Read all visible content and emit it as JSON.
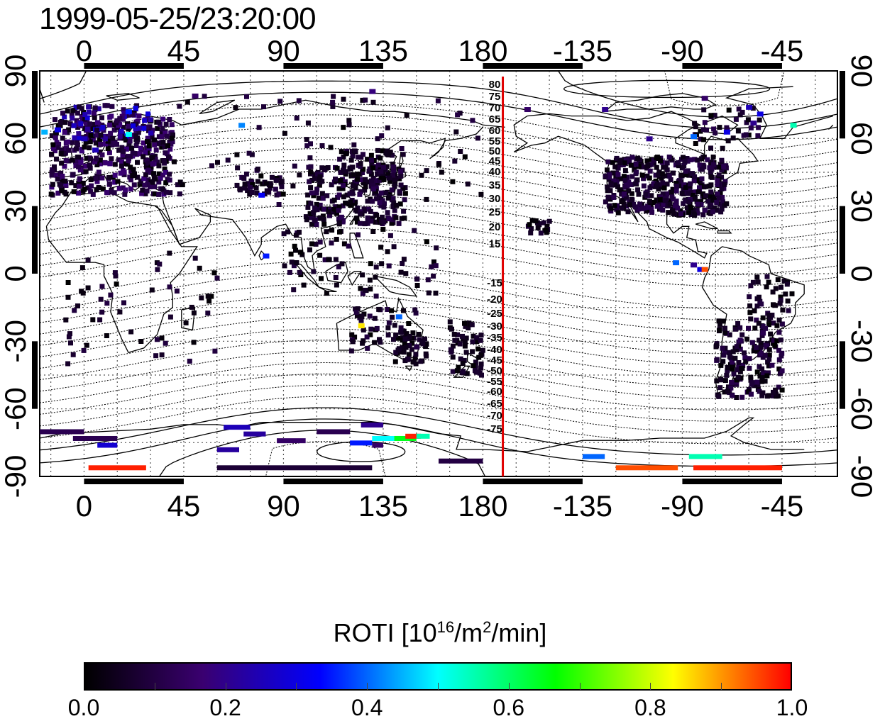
{
  "map": {
    "title": "1999-05-25/23:20:00",
    "lon_ticks_top": [
      "0",
      "45",
      "90",
      "135",
      "180",
      "-135",
      "-90",
      "-45"
    ],
    "lon_ticks_bottom": [
      "0",
      "45",
      "90",
      "135",
      "180",
      "-135",
      "-90",
      "-45"
    ],
    "lat_ticks_left": [
      "90",
      "60",
      "30",
      "0",
      "-30",
      "-60",
      "-90"
    ],
    "lat_ticks_right": [
      "90",
      "60",
      "30",
      "0",
      "-30",
      "-60",
      "-90"
    ],
    "mlat_labels_north": [
      "80",
      "75",
      "70",
      "65",
      "60",
      "55",
      "50",
      "45",
      "40",
      "35",
      "30",
      "25",
      "20",
      "15"
    ],
    "mlat_labels_south": [
      "-15",
      "-20",
      "-25",
      "-30",
      "-35",
      "-40",
      "-45",
      "-50",
      "-55",
      "-60",
      "-65",
      "-70",
      "-75"
    ],
    "terminator_line_lon": -171,
    "terminator_color": "#e00000"
  },
  "colorbar": {
    "title_main": "ROTI  [10",
    "title_exp1": "16",
    "title_mid": "/m",
    "title_exp2": "2",
    "title_end": "/min]",
    "ticks": [
      "0.0",
      "0.2",
      "0.4",
      "0.6",
      "0.8",
      "1.0"
    ],
    "range": [
      0.0,
      1.0
    ],
    "colors": [
      "#000000",
      "#3a0070",
      "#0000ff",
      "#00ffff",
      "#00ff00",
      "#ffff00",
      "#ff0000"
    ]
  },
  "chart_data": {
    "type": "heatmap",
    "title": "1999-05-25/23:20:00",
    "x_range": [
      -20,
      340
    ],
    "y_range": [
      -90,
      90
    ],
    "xlabel": "",
    "ylabel": "",
    "colorbar_label": "ROTI [10^16/m^2/min]",
    "colorbar_range": [
      0.0,
      1.0
    ],
    "grid": true
  }
}
